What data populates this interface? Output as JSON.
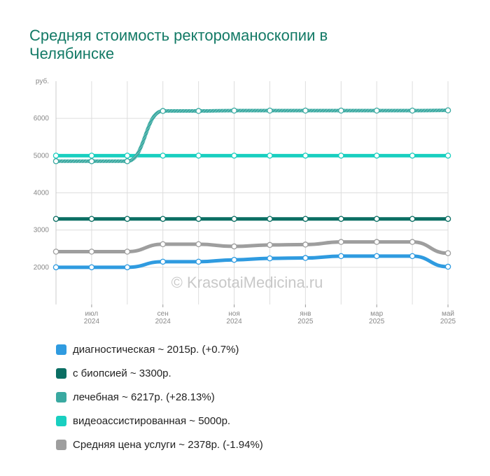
{
  "title": "Средняя стоимость ректороманоскопии в Челябинске",
  "watermark": "© KrasotaiMedicina.ru",
  "chart_data": {
    "type": "line",
    "y_unit_label": "руб.",
    "y_ticks": [
      2000,
      3000,
      4000,
      5000,
      6000
    ],
    "ylim": [
      1000,
      7000
    ],
    "x_ticks": [
      {
        "x": 1,
        "month": "июл",
        "year": "2024"
      },
      {
        "x": 3,
        "month": "сен",
        "year": "2024"
      },
      {
        "x": 5,
        "month": "ноя",
        "year": "2024"
      },
      {
        "x": 7,
        "month": "янв",
        "year": "2025"
      },
      {
        "x": 9,
        "month": "мар",
        "year": "2025"
      },
      {
        "x": 11,
        "month": "май",
        "year": "2025"
      }
    ],
    "series": [
      {
        "name": "Средняя цена услуги",
        "color": "#9e9e9e",
        "values": [
          2420,
          2420,
          2420,
          2620,
          2620,
          2560,
          2600,
          2610,
          2680,
          2680,
          2680,
          2378
        ]
      },
      {
        "name": "диагностическая",
        "color": "#2f9be0",
        "values": [
          2000,
          2000,
          2000,
          2150,
          2150,
          2200,
          2240,
          2250,
          2300,
          2300,
          2300,
          2015
        ]
      },
      {
        "name": "с биопсией",
        "color": "#0a6e63",
        "values": [
          3300,
          3300,
          3300,
          3300,
          3300,
          3300,
          3300,
          3300,
          3300,
          3300,
          3300,
          3300
        ]
      },
      {
        "name": "видеоассистированная",
        "color": "#19cfc0",
        "values": [
          5000,
          5000,
          5000,
          5000,
          5000,
          5000,
          5000,
          5000,
          5000,
          5000,
          5000,
          5000
        ]
      },
      {
        "name": "лечебная",
        "color": "#3aa9a1",
        "values": [
          4850,
          4850,
          4850,
          6200,
          6200,
          6210,
          6210,
          6210,
          6210,
          6210,
          6210,
          6217
        ]
      }
    ]
  },
  "legend": [
    {
      "label": "диагностическая ~ 2015р. (+0.7%)",
      "color": "#2f9be0"
    },
    {
      "label": "с биопсией ~ 3300р.",
      "color": "#0a6e63"
    },
    {
      "label": "лечебная ~ 6217р. (+28.13%)",
      "color": "#3aa9a1"
    },
    {
      "label": "видеоассистированная ~ 5000р.",
      "color": "#19cfc0"
    },
    {
      "label": "Средняя цена услуги ~ 2378р. (-1.94%)",
      "color": "#9e9e9e"
    }
  ]
}
